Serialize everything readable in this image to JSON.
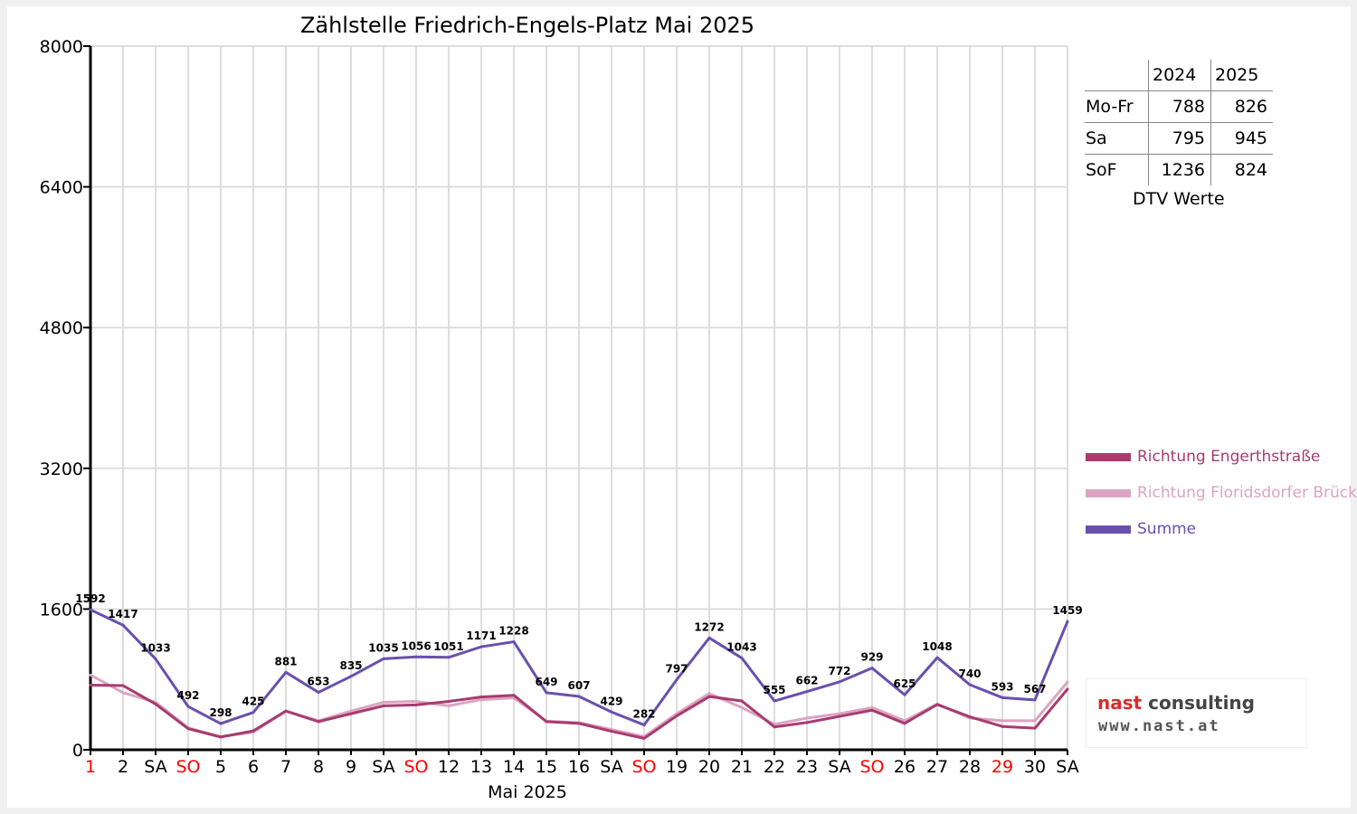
{
  "chart_data": {
    "type": "line",
    "title": "Zählstelle Friedrich-Engels-Platz Mai 2025",
    "xlabel": "Mai 2025",
    "ylabel": "",
    "ylim": [
      0,
      8000
    ],
    "yticks": [
      0,
      1600,
      3200,
      4800,
      6400,
      8000
    ],
    "grid": true,
    "legend_position": "right",
    "categories": [
      "1",
      "2",
      "SA",
      "SO",
      "5",
      "6",
      "7",
      "8",
      "9",
      "SA",
      "SO",
      "12",
      "13",
      "14",
      "15",
      "16",
      "SA",
      "SO",
      "19",
      "20",
      "21",
      "22",
      "23",
      "SA",
      "SO",
      "26",
      "27",
      "28",
      "29",
      "30",
      "SA"
    ],
    "red_categories": [
      0,
      3,
      10,
      17,
      24,
      28
    ],
    "series": [
      {
        "name": "Richtung Engerthstraße",
        "color": "#a83b6e",
        "values": [
          735,
          730,
          520,
          240,
          145,
          215,
          440,
          320,
          410,
          500,
          510,
          550,
          600,
          620,
          320,
          300,
          210,
          130,
          385,
          605,
          555,
          260,
          310,
          380,
          450,
          300,
          515,
          375,
          265,
          245,
          690
        ]
      },
      {
        "name": "Richtung Floridsdorfer Brücke",
        "color": "#dca4c2",
        "values": [
          850,
          650,
          540,
          250,
          150,
          200,
          440,
          330,
          440,
          540,
          550,
          500,
          570,
          590,
          325,
          310,
          230,
          150,
          410,
          640,
          480,
          290,
          360,
          410,
          480,
          330,
          520,
          360,
          330,
          330,
          770
        ]
      },
      {
        "name": "Summe",
        "color": "#6a50ad",
        "values": [
          1592,
          1417,
          1033,
          492,
          298,
          425,
          881,
          653,
          835,
          1035,
          1056,
          1051,
          1171,
          1228,
          649,
          607,
          429,
          282,
          797,
          1272,
          1043,
          555,
          662,
          772,
          929,
          625,
          1048,
          740,
          593,
          567,
          1459
        ]
      }
    ]
  },
  "dtv_table": {
    "caption": "DTV Werte",
    "headers": [
      "2024",
      "2025"
    ],
    "rows": [
      {
        "label": "Mo-Fr",
        "v2024": "788",
        "v2025": "826"
      },
      {
        "label": "Sa",
        "v2024": "795",
        "v2025": "945"
      },
      {
        "label": "SoF",
        "v2024": "1236",
        "v2025": "824"
      }
    ]
  },
  "logo": {
    "name_part1": "nast",
    "name_part2": "consulting",
    "url": "www.nast.at"
  }
}
